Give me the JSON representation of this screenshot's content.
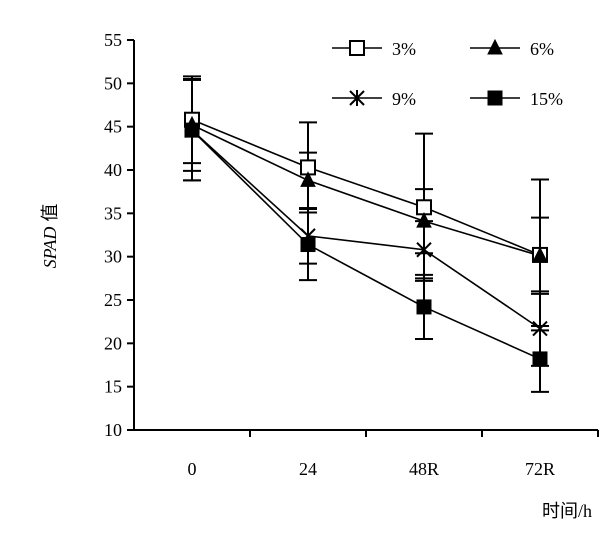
{
  "chart_data": {
    "type": "line",
    "title": "",
    "xlabel": "时间/h",
    "ylabel": "SPAD 值",
    "ylabel_main": "SPAD",
    "ylabel_unit": "值",
    "categories": [
      "0",
      "24",
      "48R",
      "72R"
    ],
    "ylim": [
      10,
      55
    ],
    "yticks": [
      10,
      15,
      20,
      25,
      30,
      35,
      40,
      45,
      50,
      55
    ],
    "grid": false,
    "legend_position": "top-right",
    "series": [
      {
        "name": "3%",
        "marker": "open-square",
        "values": [
          45.8,
          40.3,
          35.7,
          30.2
        ],
        "error": [
          5.0,
          5.2,
          8.5,
          8.7
        ]
      },
      {
        "name": "6%",
        "marker": "filled-triangle",
        "values": [
          45.2,
          38.8,
          34.1,
          30.1
        ],
        "error": [
          5.3,
          3.2,
          3.7,
          4.4
        ]
      },
      {
        "name": "9%",
        "marker": "star",
        "values": [
          44.6,
          32.4,
          30.8,
          21.7
        ],
        "error": [
          5.8,
          3.2,
          3.3,
          4.3
        ]
      },
      {
        "name": "15%",
        "marker": "filled-square",
        "values": [
          44.6,
          31.4,
          24.2,
          18.2
        ],
        "error": [
          5.8,
          4.1,
          3.7,
          3.8
        ]
      }
    ]
  }
}
